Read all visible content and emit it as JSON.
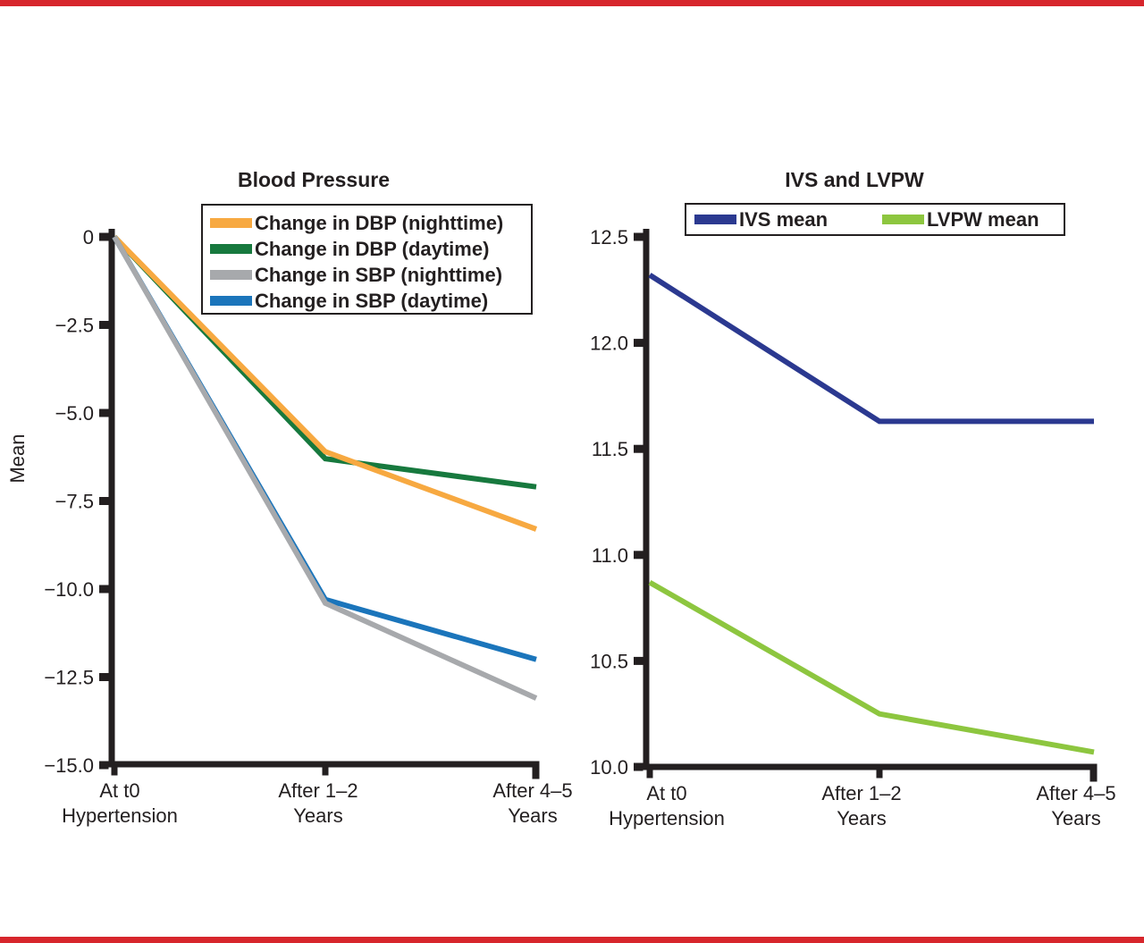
{
  "figure": {
    "border_color": "#D7262C",
    "background": "#FFFFFF",
    "text_color": "#231F20",
    "axis_color": "#231F20"
  },
  "chart_data": [
    {
      "type": "line",
      "title": "Blood Pressure",
      "ylabel": "Mean",
      "xlabel": "",
      "ylim": [
        -15,
        0
      ],
      "grid": false,
      "legend_position": "top-inside",
      "categories": [
        [
          "At t0",
          "Hypertension"
        ],
        [
          "After 1–2",
          "Years"
        ],
        [
          "After 4–5",
          "Years"
        ]
      ],
      "yticks": [
        {
          "label": "0",
          "value": 0
        },
        {
          "label": "−2.5",
          "value": -2.5
        },
        {
          "label": "−5.0",
          "value": -5
        },
        {
          "label": "−7.5",
          "value": -7.5
        },
        {
          "label": "−10.0",
          "value": -10
        },
        {
          "label": "−12.5",
          "value": -12.5
        },
        {
          "label": "−15.0",
          "value": -15
        }
      ],
      "series": [
        {
          "name": "Change in DBP (nighttime)",
          "color": "#F7A941",
          "values": [
            0,
            -6.1,
            -8.3
          ]
        },
        {
          "name": "Change in DBP (daytime)",
          "color": "#17793E",
          "values": [
            0,
            -6.3,
            -7.1
          ]
        },
        {
          "name": "Change in SBP (nighttime)",
          "color": "#A7A9AC",
          "values": [
            0,
            -10.4,
            -13.1
          ]
        },
        {
          "name": "Change in SBP (daytime)",
          "color": "#1B75BB",
          "values": [
            0,
            -10.3,
            -12.0
          ]
        }
      ]
    },
    {
      "type": "line",
      "title": "IVS and LVPW",
      "ylabel": "",
      "xlabel": "",
      "ylim": [
        10,
        12.5
      ],
      "grid": false,
      "legend_position": "top-inside",
      "categories": [
        [
          "At t0",
          "Hypertension"
        ],
        [
          "After 1–2",
          "Years"
        ],
        [
          "After 4–5",
          "Years"
        ]
      ],
      "yticks": [
        {
          "label": "12.5",
          "value": 12.5
        },
        {
          "label": "12.0",
          "value": 12
        },
        {
          "label": "11.5",
          "value": 11.5
        },
        {
          "label": "11.0",
          "value": 11
        },
        {
          "label": "10.5",
          "value": 10.5
        },
        {
          "label": "10.0",
          "value": 10
        }
      ],
      "series": [
        {
          "name": "IVS mean",
          "color": "#2B3990",
          "values": [
            12.32,
            11.63,
            11.63
          ]
        },
        {
          "name": "LVPW mean",
          "color": "#8DC63F",
          "values": [
            10.87,
            10.25,
            10.07
          ]
        }
      ]
    }
  ]
}
